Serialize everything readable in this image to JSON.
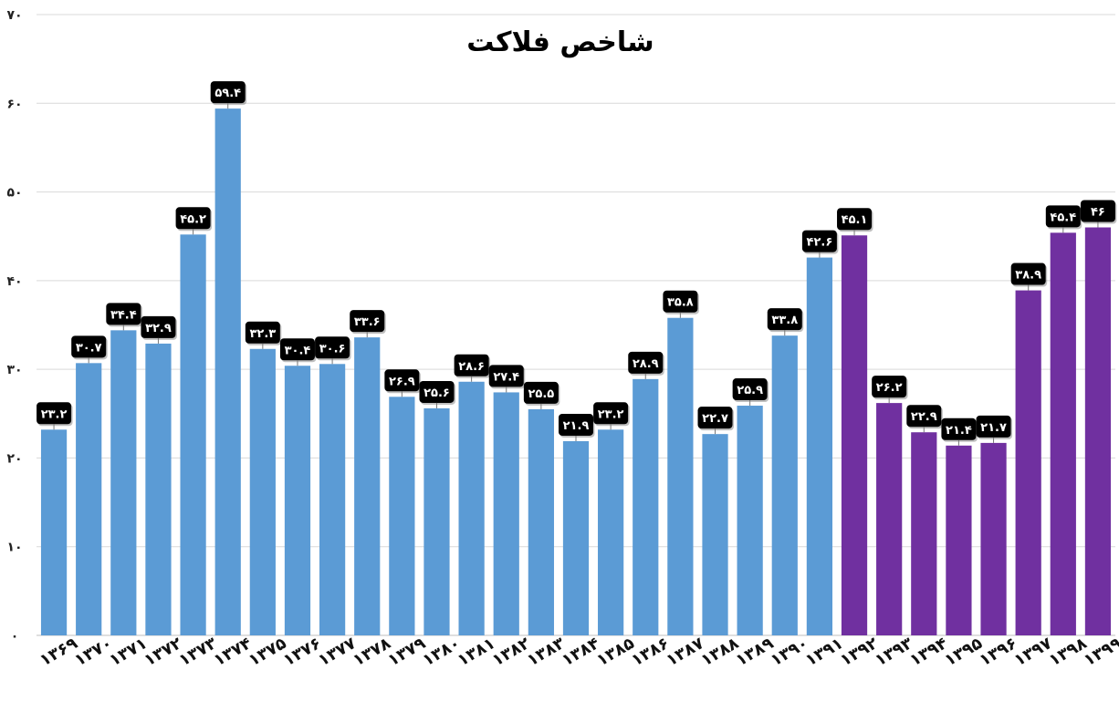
{
  "chart_data": {
    "type": "bar",
    "title": "شاخص فلاکت",
    "xlabel": "",
    "ylabel": "",
    "ylim": [
      0,
      70
    ],
    "yticks": [
      "۰",
      "۱۰",
      "۲۰",
      "۳۰",
      "۴۰",
      "۵۰",
      "۶۰",
      "۷۰"
    ],
    "grid": true,
    "legend": "none",
    "categories": [
      "۱۳۶۹",
      "۱۳۷۰",
      "۱۳۷۱",
      "۱۳۷۲",
      "۱۳۷۳",
      "۱۳۷۴",
      "۱۳۷۵",
      "۱۳۷۶",
      "۱۳۷۷",
      "۱۳۷۸",
      "۱۳۷۹",
      "۱۳۸۰",
      "۱۳۸۱",
      "۱۳۸۲",
      "۱۳۸۳",
      "۱۳۸۴",
      "۱۳۸۵",
      "۱۳۸۶",
      "۱۳۸۷",
      "۱۳۸۸",
      "۱۳۸۹",
      "۱۳۹۰",
      "۱۳۹۱",
      "۱۳۹۲",
      "۱۳۹۳",
      "۱۳۹۴",
      "۱۳۹۵",
      "۱۳۹۶",
      "۱۳۹۷",
      "۱۳۹۸",
      "۱۳۹۹"
    ],
    "values": [
      23.2,
      30.7,
      34.4,
      32.9,
      45.2,
      59.4,
      32.3,
      30.4,
      30.6,
      33.6,
      26.9,
      25.6,
      28.6,
      27.4,
      25.5,
      21.9,
      23.2,
      28.9,
      35.8,
      22.7,
      25.9,
      33.8,
      42.6,
      45.1,
      26.2,
      22.9,
      21.4,
      21.7,
      38.9,
      45.4,
      46
    ],
    "data_labels": [
      "۲۳.۲",
      "۳۰.۷",
      "۳۴.۴",
      "۳۲.۹",
      "۴۵.۲",
      "۵۹.۴",
      "۳۲.۳",
      "۳۰.۴",
      "۳۰.۶",
      "۳۳.۶",
      "۲۶.۹",
      "۲۵.۶",
      "۲۸.۶",
      "۲۷.۴",
      "۲۵.۵",
      "۲۱.۹",
      "۲۳.۲",
      "۲۸.۹",
      "۳۵.۸",
      "۲۲.۷",
      "۲۵.۹",
      "۳۳.۸",
      "۴۲.۶",
      "۴۵.۱",
      "۲۶.۲",
      "۲۲.۹",
      "۲۱.۴",
      "۲۱.۷",
      "۳۸.۹",
      "۴۵.۴",
      "۴۶"
    ],
    "highlight_from_index": 23,
    "colors": {
      "base": "#5b9bd5",
      "highlight": "#7030a0",
      "label_bg": "#000000",
      "label_text": "#ffffff",
      "grid": "#d9d9d9"
    }
  }
}
